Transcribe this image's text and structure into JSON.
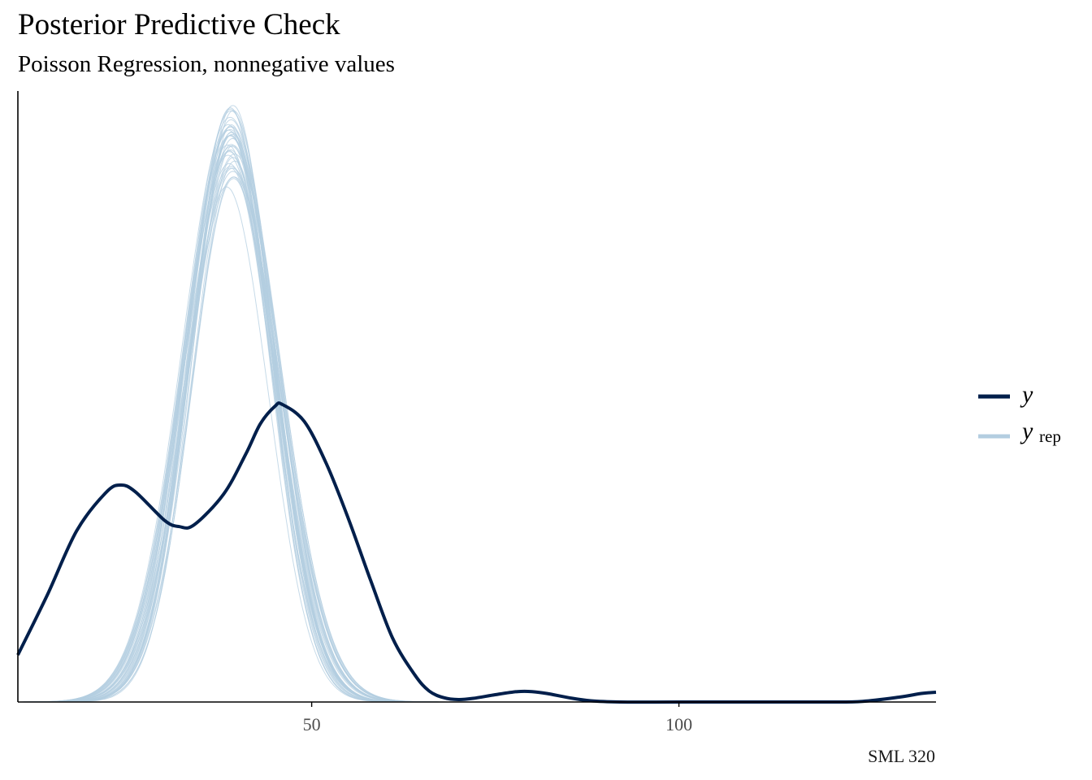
{
  "chart_data": {
    "type": "line",
    "title": "Posterior Predictive Check",
    "subtitle": "Poisson Regression, nonnegative values",
    "caption": "SML 320",
    "xlabel": "",
    "ylabel": "",
    "xlim": [
      10,
      135
    ],
    "ylim": [
      0,
      1
    ],
    "x_ticks": [
      50,
      100
    ],
    "x_tick_labels": [
      "50",
      "100"
    ],
    "y_ticks": [],
    "grid": false,
    "legend_position": "right",
    "legend": [
      {
        "label": "y",
        "subscript": "",
        "color": "#011f4b"
      },
      {
        "label": "y",
        "subscript": "rep",
        "color": "#b3cde0"
      }
    ],
    "series": [
      {
        "name": "y",
        "color": "#011f4b",
        "x": [
          10,
          14,
          18,
          22,
          24,
          26,
          30,
          32,
          34,
          38,
          41,
          43,
          45,
          46,
          49,
          52,
          55,
          58,
          61,
          64,
          66,
          68,
          70,
          72,
          75,
          78,
          80,
          82,
          85,
          88,
          92,
          100,
          110,
          120,
          125,
          130,
          133,
          135
        ],
        "y": [
          0.077,
          0.175,
          0.28,
          0.343,
          0.355,
          0.344,
          0.297,
          0.287,
          0.29,
          0.34,
          0.405,
          0.455,
          0.484,
          0.487,
          0.459,
          0.39,
          0.3,
          0.2,
          0.105,
          0.045,
          0.018,
          0.007,
          0.004,
          0.006,
          0.012,
          0.017,
          0.017,
          0.014,
          0.007,
          0.002,
          0.0,
          0.0,
          0.0,
          0.0,
          0.001,
          0.008,
          0.014,
          0.016
        ]
      }
    ],
    "yrep": {
      "name": "y_rep",
      "color": "#b3cde0",
      "draws": 40,
      "mean": [
        38.5,
        39.5
      ],
      "sd": [
        5.3,
        6.6
      ],
      "peak": [
        0.85,
        0.98
      ]
    }
  }
}
